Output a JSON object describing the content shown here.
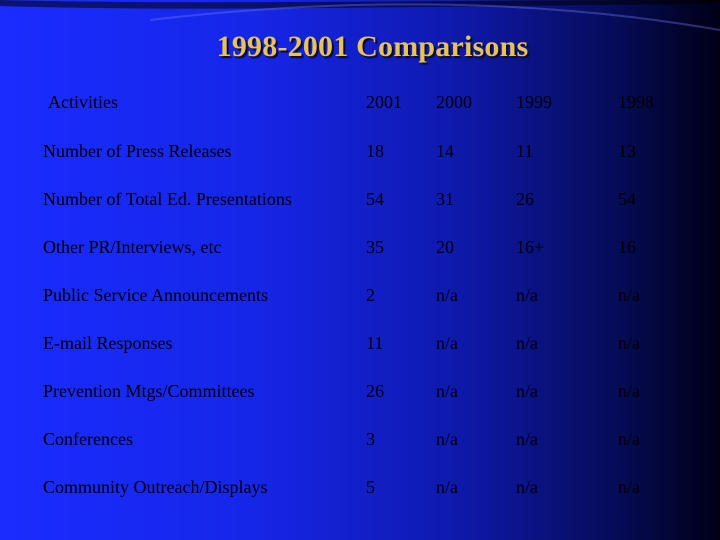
{
  "slide": {
    "title": "1998-2001 Comparisons",
    "headers": [
      "Activities",
      "2001",
      "2000",
      "1999",
      "1998"
    ],
    "rows": [
      {
        "label": "Number of Press Releases",
        "values": [
          "18",
          "14",
          "11",
          "13"
        ]
      },
      {
        "label": "Number of Total Ed. Presentations",
        "values": [
          "54",
          "31",
          "26",
          "54"
        ]
      },
      {
        "label": "Other PR/Interviews, etc",
        "values": [
          "35",
          "20",
          "16+",
          "16"
        ]
      },
      {
        "label": "Public Service Announcements",
        "values": [
          "2",
          "n/a",
          "n/a",
          "n/a"
        ]
      },
      {
        "label": "E-mail Responses",
        "values": [
          "11",
          "n/a",
          "n/a",
          "n/a"
        ]
      },
      {
        "label": "Prevention Mtgs/Committees",
        "values": [
          "26",
          "n/a",
          "n/a",
          "n/a"
        ]
      },
      {
        "label": "Conferences",
        "values": [
          "3",
          "n/a",
          "n/a",
          "n/a"
        ]
      },
      {
        "label": "Community Outreach/Displays",
        "values": [
          "5",
          "n/a",
          "n/a",
          "n/a"
        ]
      }
    ]
  },
  "colors": {
    "background_left": "#1a2cff",
    "background_right": "#000016",
    "title": "#e6c25a",
    "text": "#000000"
  }
}
